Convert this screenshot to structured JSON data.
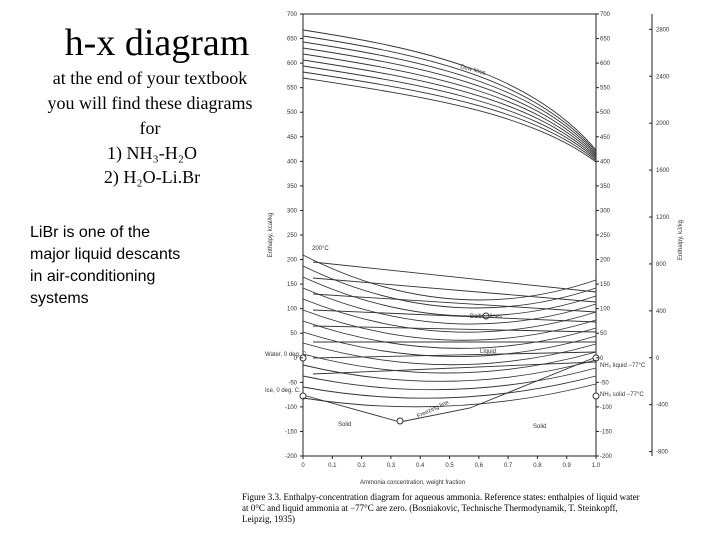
{
  "slide": {
    "title": "h-x diagram",
    "intro": [
      "at the end of your textbook",
      "you will find these diagrams",
      "for"
    ],
    "items": [
      "1) NH₃-H₂O",
      "2) H₂O-Li.Br"
    ],
    "note": [
      "LiBr is one of the",
      "major liquid descants",
      "in air-conditioning",
      "systems"
    ]
  },
  "figure": {
    "ylabel": "Enthalpy, kcal/kg",
    "y2label": "Enthalpy, kJ/kg",
    "xlabel": "Ammonia concentration, weight fraction",
    "xlim": [
      0,
      1
    ],
    "xticks": [
      0,
      0.1,
      0.2,
      0.3,
      0.4,
      0.5,
      0.6,
      0.7,
      0.8,
      0.9,
      {
        "value": 1,
        "label": "1.0"
      }
    ],
    "ylim": [
      -200,
      700
    ],
    "yticks": [
      -200,
      -150,
      -100,
      -50,
      0,
      50,
      100,
      150,
      200,
      250,
      300,
      350,
      400,
      450,
      500,
      550,
      600,
      650,
      700
    ],
    "y2lim": [
      -837.36,
      2930.76
    ],
    "y2ticks": [
      -800,
      -400,
      0,
      400,
      800,
      1200,
      1600,
      2000,
      2400,
      2800
    ],
    "labels": {
      "dew_lines": "Dew lines",
      "boiling_lines": "Boiling lines",
      "liquid": "Liquid",
      "solid_left": "Solid",
      "solid_right": "Solid",
      "temp_200": "200°C",
      "water": "Water, 0 deg. C.",
      "ice": "Ice, 0 deg. C.",
      "nh3_liquid": "NH₃ liquid −77°C",
      "nh3_solid": "NH₃ solid −77°C",
      "freezing_line": "Freezing line"
    },
    "caption": [
      "Figure 3.3.  Enthalpy-concentration diagram for aqueous ammonia. Reference states: enthalpies of liquid water",
      "at 0°C and liquid ammonia at −77°C are zero. (Bosniakovic, Technische Thermodynamik, T. Steinkopff,",
      "Leipzig, 1935)"
    ]
  }
}
